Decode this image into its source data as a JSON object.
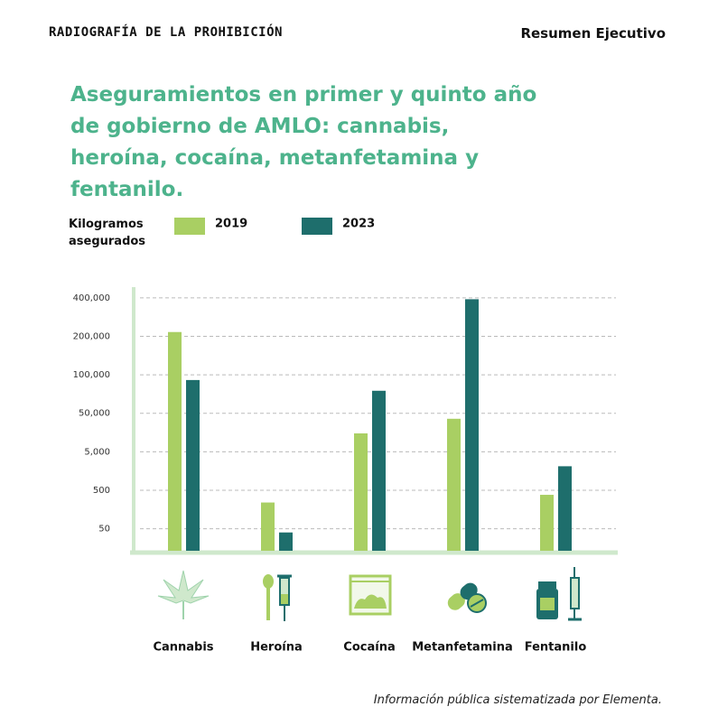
{
  "header": {
    "brand": "RADIOGRAFÍA DE LA PROHIBICIÓN",
    "section": "Resumen Ejecutivo"
  },
  "chart_data": {
    "type": "bar",
    "title": "Aseguramientos en primer y quinto año de gobierno de AMLO: cannabis, heroína, cocaína, metanfetamina y fentanilo.",
    "y_label": "Kilogramos asegurados",
    "scale": "piecewise-log",
    "categories": [
      "Cannabis",
      "Heroína",
      "Cocaína",
      "Metanfetamina",
      "Fentanilo"
    ],
    "series": [
      {
        "name": "2019",
        "color": "#a9cf63",
        "values": [
          216000,
          240,
          15000,
          36000,
          380
        ]
      },
      {
        "name": "2023",
        "color": "#1e6e6c",
        "values": [
          91000,
          40,
          75000,
          390000,
          2100
        ]
      }
    ],
    "ylim": [
      12,
      485000
    ],
    "yticks": [
      50,
      500,
      {
        "value": 5000,
        "label": "5,000"
      },
      {
        "value": 50000,
        "label": "50,000"
      },
      {
        "value": 100000,
        "label": "100,000"
      },
      {
        "value": 200000,
        "label": "200,000"
      },
      {
        "value": 400000,
        "label": "400,000"
      }
    ],
    "grid": true
  },
  "footer": {
    "note": "Información pública sistematizada por Elementa."
  }
}
